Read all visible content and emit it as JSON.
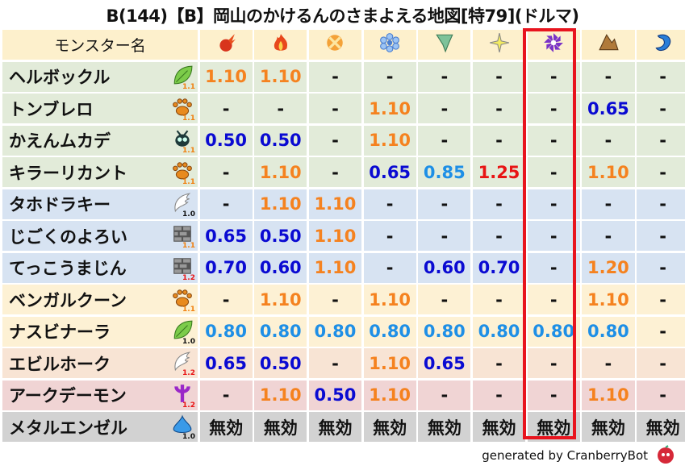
{
  "title": "B(144)【B】岡山のかけるんのさまよえる地図[特79](ドルマ)",
  "header": {
    "name_label": "モンスター名",
    "elements": [
      "fire-meteor-icon",
      "flame-icon",
      "explosion-icon",
      "ice-icon",
      "wind-icon",
      "light-icon",
      "dark-icon",
      "earth-icon",
      "water-icon"
    ]
  },
  "highlight_column": "dark-icon",
  "colors": {
    "weak": "#f5821f",
    "resist": "#0a0ad2",
    "light_resist": "#1e8fe6",
    "strong_weak": "#e81414",
    "highlight": "#e8141e"
  },
  "rows": [
    {
      "name": "ヘルボックル",
      "type": "leaf-icon",
      "rank": "1.1",
      "bg": "g",
      "values": [
        "1.10",
        "1.10",
        "-",
        "-",
        "-",
        "-",
        "-",
        "-",
        "-"
      ]
    },
    {
      "name": "トンブレロ",
      "type": "paw-icon",
      "rank": "1.1",
      "bg": "g",
      "values": [
        "-",
        "-",
        "-",
        "1.10",
        "-",
        "-",
        "-",
        "0.65",
        "-"
      ]
    },
    {
      "name": "かえんムカデ",
      "type": "bug-icon",
      "rank": "1.1",
      "bg": "g",
      "values": [
        "0.50",
        "0.50",
        "-",
        "1.10",
        "-",
        "-",
        "-",
        "-",
        "-"
      ]
    },
    {
      "name": "キラーリカント",
      "type": "paw-icon",
      "rank": "1.1",
      "bg": "g",
      "values": [
        "-",
        "1.10",
        "-",
        "0.65",
        "0.85",
        "1.25",
        "-",
        "1.10",
        "-"
      ]
    },
    {
      "name": "タホドラキー",
      "type": "wing-icon",
      "rank": "1.0",
      "bg": "b",
      "values": [
        "-",
        "1.10",
        "1.10",
        "-",
        "-",
        "-",
        "-",
        "-",
        "-"
      ]
    },
    {
      "name": "じごくのよろい",
      "type": "brick-icon",
      "rank": "1.1",
      "bg": "b",
      "values": [
        "0.65",
        "0.50",
        "1.10",
        "-",
        "-",
        "-",
        "-",
        "-",
        "-"
      ]
    },
    {
      "name": "てっこうまじん",
      "type": "brick-icon",
      "rank": "1.2",
      "bg": "b",
      "values": [
        "0.70",
        "0.60",
        "1.10",
        "-",
        "0.60",
        "0.70",
        "-",
        "1.20",
        "-"
      ]
    },
    {
      "name": "ベンガルクーン",
      "type": "paw-icon",
      "rank": "1.1",
      "bg": "y",
      "values": [
        "-",
        "1.10",
        "-",
        "1.10",
        "-",
        "-",
        "-",
        "1.10",
        "-"
      ]
    },
    {
      "name": "ナスビナーラ",
      "type": "leaf-icon",
      "rank": "1.0",
      "bg": "y",
      "values": [
        "0.80",
        "0.80",
        "0.80",
        "0.80",
        "0.80",
        "0.80",
        "0.80",
        "0.80",
        "-"
      ]
    },
    {
      "name": "エビルホーク",
      "type": "wing-icon",
      "rank": "1.2",
      "bg": "p",
      "values": [
        "0.65",
        "0.50",
        "-",
        "1.10",
        "0.65",
        "-",
        "-",
        "-",
        "-"
      ]
    },
    {
      "name": "アークデーモン",
      "type": "trident-icon",
      "rank": "1.2",
      "bg": "k",
      "values": [
        "-",
        "1.10",
        "0.50",
        "1.10",
        "-",
        "-",
        "-",
        "1.10",
        "-"
      ]
    },
    {
      "name": "メタルエンゼル",
      "type": "slime-icon",
      "rank": "1.0",
      "bg": "s",
      "values": [
        "無効",
        "無効",
        "無効",
        "無効",
        "無効",
        "無効",
        "無効",
        "無効",
        "無効"
      ]
    }
  ],
  "footer": "generated by CranberryBot"
}
